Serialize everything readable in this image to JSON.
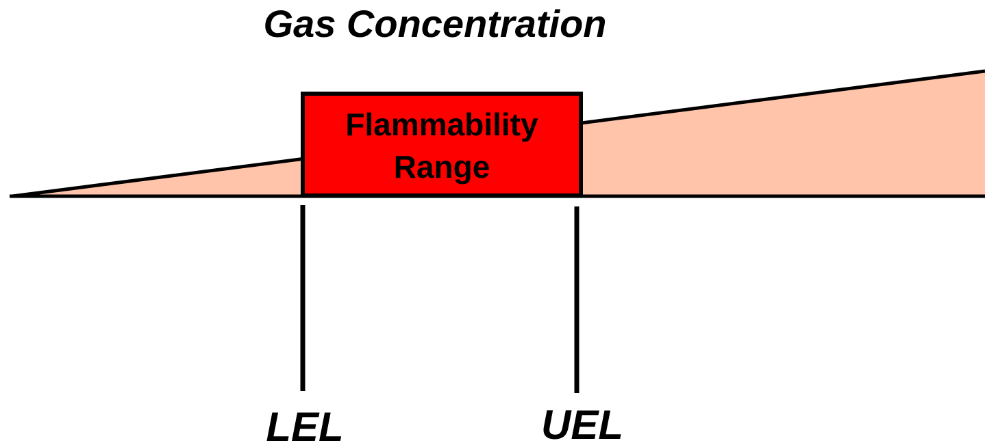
{
  "title": "Gas Concentration",
  "range_label": [
    "Flammability",
    "Range"
  ],
  "markers": [
    "LEL",
    "UEL"
  ]
}
